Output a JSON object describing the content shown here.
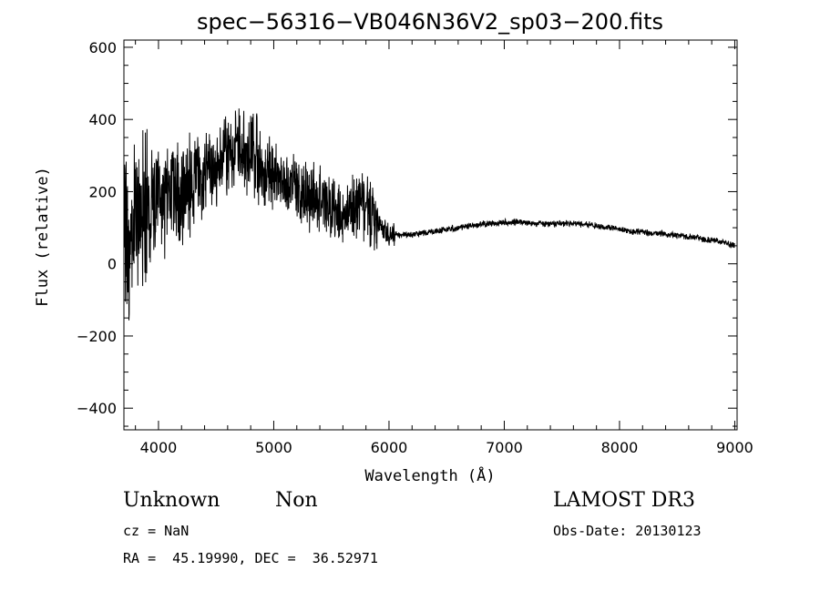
{
  "chart_data": {
    "type": "line",
    "title": "spec−56316−VB046N36V2_sp03−200.fits",
    "xlabel": "Wavelength (Å)",
    "ylabel": "Flux (relative)",
    "xlim": [
      3700,
      9020
    ],
    "ylim": [
      -460,
      620
    ],
    "xticks": [
      4000,
      5000,
      6000,
      7000,
      8000,
      9000
    ],
    "xtick_labels": [
      "4000",
      "5000",
      "6000",
      "7000",
      "8000",
      "9000"
    ],
    "yticks": [
      -400,
      -200,
      0,
      200,
      400,
      600
    ],
    "ytick_labels": [
      "−400",
      "−200",
      "0",
      "200",
      "400",
      "600"
    ],
    "grid": false,
    "series": [
      {
        "x": [
          3700,
          3730,
          3760,
          3790,
          3820,
          3850,
          3880,
          3910,
          3940,
          3970,
          4000,
          4050,
          4100,
          4150,
          4200,
          4250,
          4300,
          4350,
          4400,
          4450,
          4500,
          4550,
          4600,
          4650,
          4700,
          4750,
          4800,
          4850,
          4900,
          4950,
          5000,
          5050,
          5100,
          5150,
          5200,
          5250,
          5300,
          5350,
          5400,
          5450,
          5500,
          5550,
          5600,
          5650,
          5700,
          5750,
          5800,
          5850,
          5900,
          5950,
          6000,
          6100,
          6200,
          6300,
          6400,
          6500,
          6600,
          6700,
          6800,
          6900,
          7000,
          7100,
          7200,
          7300,
          7400,
          7500,
          7600,
          7700,
          7800,
          7900,
          8000,
          8100,
          8200,
          8300,
          8400,
          8500,
          8600,
          8700,
          8800,
          8900,
          9000
        ],
        "y": [
          120,
          60,
          80,
          110,
          130,
          140,
          150,
          150,
          160,
          165,
          170,
          180,
          190,
          200,
          210,
          220,
          230,
          240,
          250,
          260,
          270,
          280,
          290,
          300,
          310,
          315,
          310,
          290,
          270,
          260,
          250,
          240,
          230,
          220,
          210,
          200,
          190,
          180,
          170,
          160,
          150,
          145,
          140,
          150,
          160,
          170,
          150,
          130,
          110,
          95,
          85,
          80,
          80,
          85,
          90,
          95,
          100,
          105,
          110,
          112,
          115,
          116,
          114,
          112,
          110,
          112,
          112,
          110,
          105,
          100,
          95,
          90,
          88,
          85,
          82,
          78,
          75,
          70,
          65,
          60,
          50
        ]
      }
    ]
  },
  "annotations": {
    "object_class": "Unknown",
    "subclass": "Non",
    "survey": "LAMOST DR3",
    "cz": "cz = NaN",
    "obs_date": "Obs-Date: 20130123",
    "radec": "RA =  45.19990, DEC =  36.52971"
  }
}
